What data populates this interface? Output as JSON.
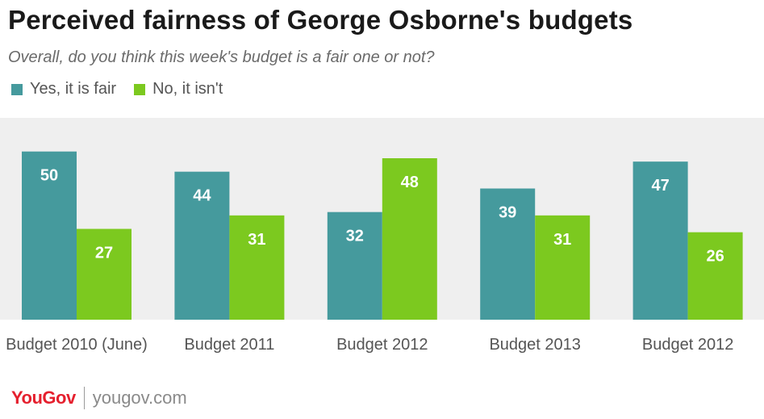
{
  "title": "Perceived fairness of George Osborne's budgets",
  "subtitle": "Overall, do you think this week's budget is a fair one or not?",
  "colors": {
    "yes": "#459a9d",
    "no": "#7cc91f",
    "background": "#efefef",
    "brand": "#e5202e"
  },
  "legend": [
    {
      "label": "Yes, it is fair",
      "color": "#459a9d"
    },
    {
      "label": "No, it isn't",
      "color": "#7cc91f"
    }
  ],
  "chart_data": {
    "type": "bar",
    "categories": [
      "Budget 2010 (June)",
      "Budget 2011",
      "Budget 2012",
      "Budget 2013",
      "Budget 2012"
    ],
    "series": [
      {
        "name": "Yes, it is fair",
        "values": [
          50,
          44,
          32,
          39,
          47
        ]
      },
      {
        "name": "No, it isn't",
        "values": [
          27,
          31,
          48,
          31,
          26
        ]
      }
    ],
    "ylim": [
      0,
      60
    ],
    "grid": false,
    "data_labels": true,
    "legend_position": "top-left"
  },
  "footer": {
    "logo": "YouGov",
    "site": "yougov.com"
  }
}
